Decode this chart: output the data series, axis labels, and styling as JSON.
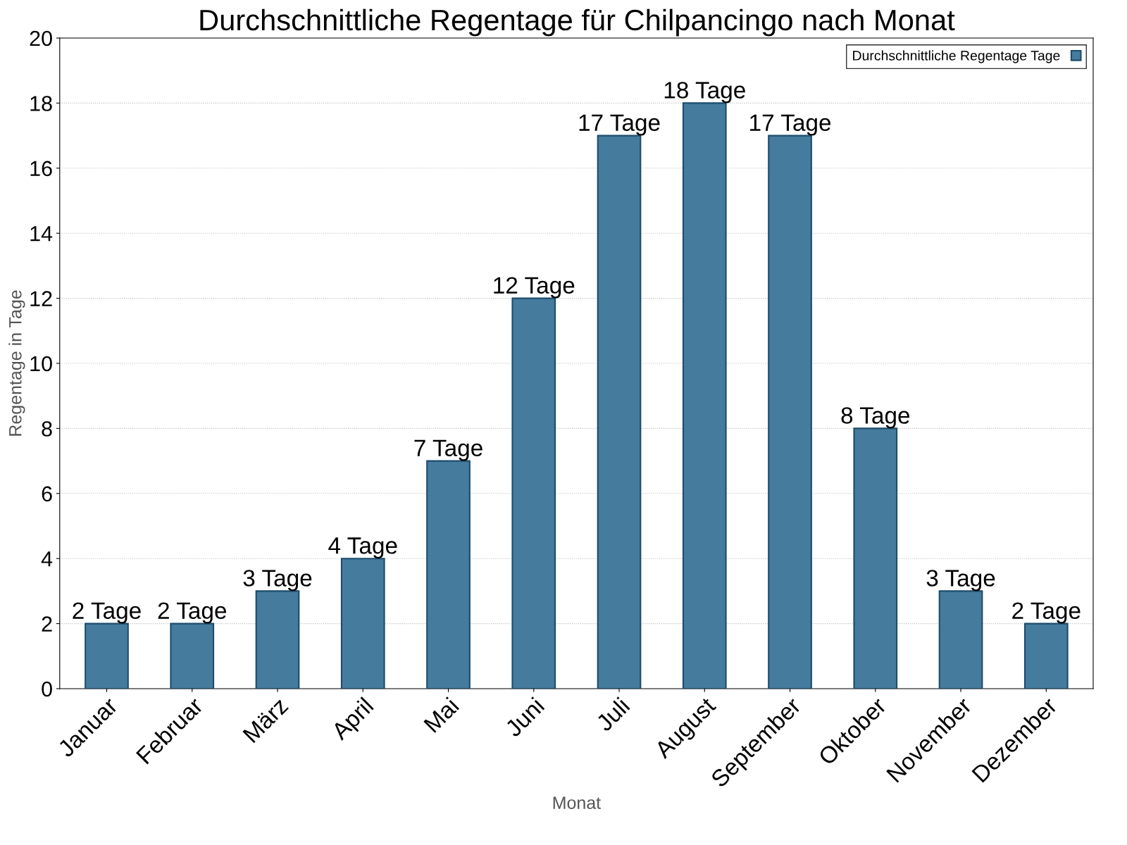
{
  "chart_data": {
    "type": "bar",
    "title": "Durchschnittliche Regentage für Chilpancingo nach Monat",
    "xlabel": "Monat",
    "ylabel": "Regentage in Tage",
    "categories": [
      "Januar",
      "Februar",
      "März",
      "April",
      "Mai",
      "Juni",
      "Juli",
      "August",
      "September",
      "Oktober",
      "November",
      "Dezember"
    ],
    "series": [
      {
        "name": "Durchschnittliche Regentage Tage",
        "color": "#457b9d",
        "values": [
          2,
          2,
          3,
          4,
          7,
          12,
          17,
          18,
          17,
          8,
          3,
          2
        ],
        "value_labels": [
          "2 Tage",
          "2 Tage",
          "3 Tage",
          "4 Tage",
          "7 Tage",
          "12 Tage",
          "17 Tage",
          "18 Tage",
          "17 Tage",
          "8 Tage",
          "3 Tage",
          "2 Tage"
        ]
      }
    ],
    "ylim": [
      0,
      20
    ],
    "yticks": [
      0,
      2,
      4,
      6,
      8,
      10,
      12,
      14,
      16,
      18,
      20
    ],
    "grid": "y",
    "legend": "top right"
  }
}
